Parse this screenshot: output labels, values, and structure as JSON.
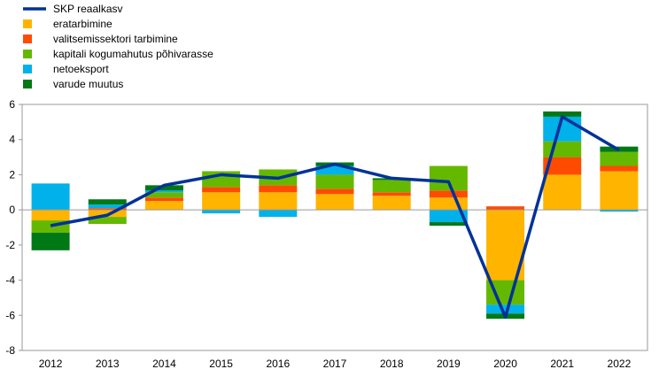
{
  "chart_data": {
    "type": "bar",
    "stacked": true,
    "categories": [
      "2012",
      "2013",
      "2014",
      "2015",
      "2016",
      "2017",
      "2018",
      "2019",
      "2020",
      "2021",
      "2022"
    ],
    "ylim": [
      -8,
      6
    ],
    "yticks": [
      -8,
      -6,
      -4,
      -2,
      0,
      2,
      4,
      6
    ],
    "grid": false,
    "legend_position": "top-left",
    "series": [
      {
        "name": "eratarbimine",
        "color": "#FFB400",
        "values": [
          -0.6,
          -0.4,
          0.5,
          1.0,
          1.0,
          0.9,
          0.8,
          0.7,
          -4.0,
          2.0,
          2.2
        ]
      },
      {
        "name": "valitsemissektori tarbimine",
        "color": "#FF4B00",
        "values": [
          0.0,
          0.1,
          0.2,
          0.3,
          0.4,
          0.3,
          0.2,
          0.4,
          0.2,
          1.0,
          0.3
        ]
      },
      {
        "name": "kapitali kogumahutus põhivarasse",
        "color": "#65B800",
        "values": [
          -0.7,
          -0.4,
          0.3,
          0.9,
          0.9,
          0.8,
          0.7,
          1.4,
          -1.4,
          0.9,
          0.8
        ]
      },
      {
        "name": "netoeksport",
        "color": "#00B1EA",
        "values": [
          1.5,
          0.2,
          0.1,
          -0.2,
          -0.4,
          0.5,
          0.0,
          -0.7,
          -0.5,
          1.4,
          -0.1
        ]
      },
      {
        "name": "varude muutus",
        "color": "#007816",
        "values": [
          -1.0,
          0.3,
          0.3,
          0.0,
          0.0,
          0.2,
          0.1,
          -0.2,
          -0.3,
          0.3,
          0.3
        ]
      }
    ],
    "line": {
      "name": "SKP reaalkasv",
      "color": "#003299",
      "values": [
        -0.9,
        -0.3,
        1.4,
        2.0,
        1.8,
        2.6,
        1.8,
        1.6,
        -6.1,
        5.3,
        3.4
      ]
    }
  }
}
